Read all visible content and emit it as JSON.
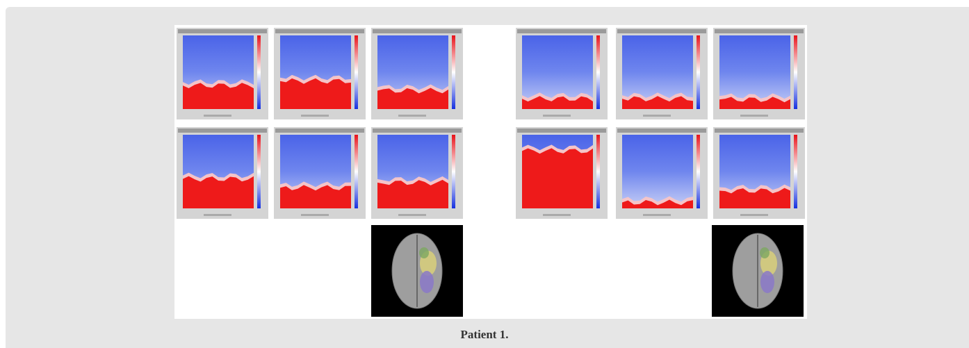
{
  "caption": "Patient 1."
}
